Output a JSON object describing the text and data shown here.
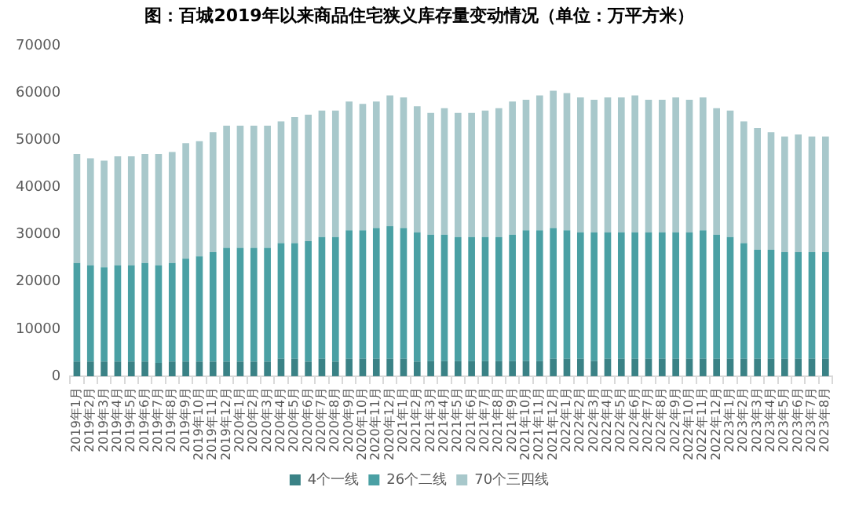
{
  "chart_data": {
    "type": "bar",
    "title": "图：百城2019年以来商品住宅狭义库存量变动情况（单位：万平方米）",
    "categories": [
      "2019年1月",
      "2019年2月",
      "2019年3月",
      "2019年4月",
      "2019年5月",
      "2019年6月",
      "2019年7月",
      "2019年8月",
      "2019年9月",
      "2019年10月",
      "2019年11月",
      "2019年12月",
      "2020年1月",
      "2020年2月",
      "2020年3月",
      "2020年4月",
      "2020年5月",
      "2020年6月",
      "2020年7月",
      "2020年8月",
      "2020年9月",
      "2020年10月",
      "2020年11月",
      "2020年12月",
      "2021年1月",
      "2021年2月",
      "2021年3月",
      "2021年4月",
      "2021年5月",
      "2021年6月",
      "2021年7月",
      "2021年8月",
      "2021年9月",
      "2021年10月",
      "2021年11月",
      "2021年12月",
      "2022年1月",
      "2022年2月",
      "2022年3月",
      "2022年4月",
      "2022年5月",
      "2022年6月",
      "2022年7月",
      "2022年8月",
      "2022年9月",
      "2022年10月",
      "2022年11月",
      "2022年12月",
      "2023年1月",
      "2023年2月",
      "2023年3月",
      "2023年4月",
      "2023年5月",
      "2023年6月",
      "2023年7月",
      "2023年8月"
    ],
    "stacked": true,
    "ylim": [
      0,
      70000
    ],
    "yticks": [
      0,
      10000,
      20000,
      30000,
      40000,
      50000,
      60000,
      70000
    ],
    "grid": false,
    "legend": "bottom",
    "series": [
      {
        "name": "4个一线",
        "color": "#3a8286",
        "values": [
          3100,
          3100,
          3100,
          3100,
          3100,
          3100,
          2800,
          3100,
          3100,
          3100,
          3100,
          3100,
          3100,
          3100,
          3100,
          3700,
          3700,
          3100,
          3700,
          3100,
          3700,
          3700,
          3700,
          3700,
          3700,
          3100,
          3200,
          3200,
          3200,
          3200,
          3200,
          3200,
          3200,
          3200,
          3200,
          3700,
          3700,
          3700,
          3200,
          3700,
          3700,
          3700,
          3700,
          3700,
          3700,
          3700,
          3700,
          3700,
          3700,
          3700,
          3700,
          3700,
          3700,
          3700,
          3700,
          3700
        ]
      },
      {
        "name": "26个二线",
        "color": "#4aa0a4",
        "values": [
          20900,
          20400,
          20000,
          20400,
          20400,
          20900,
          20700,
          20900,
          21800,
          22300,
          23200,
          24100,
          24100,
          24100,
          24100,
          24500,
          24500,
          25500,
          25800,
          26400,
          27200,
          27200,
          27700,
          28100,
          27700,
          27400,
          26800,
          26800,
          26300,
          26300,
          26300,
          26300,
          26800,
          27700,
          27700,
          27700,
          27200,
          26800,
          27300,
          26800,
          26800,
          26800,
          26800,
          26800,
          26800,
          26800,
          27200,
          26300,
          25800,
          24500,
          23100,
          23100,
          22600,
          22600,
          22600,
          22600
        ]
      },
      {
        "name": "70个三四线",
        "color": "#a8c8cb",
        "values": [
          23100,
          22700,
          22600,
          23100,
          23100,
          23100,
          23600,
          23500,
          24500,
          24400,
          25400,
          25900,
          25900,
          25900,
          25900,
          25800,
          26700,
          26800,
          26800,
          26800,
          27300,
          26800,
          26800,
          27700,
          27700,
          26700,
          25800,
          26800,
          26300,
          26300,
          26800,
          27300,
          28200,
          27700,
          28600,
          29100,
          29100,
          28600,
          28100,
          28600,
          28600,
          29000,
          28100,
          28100,
          28600,
          28100,
          28200,
          26800,
          26800,
          25800,
          25800,
          24900,
          24500,
          24900,
          24500,
          24500
        ]
      }
    ]
  }
}
